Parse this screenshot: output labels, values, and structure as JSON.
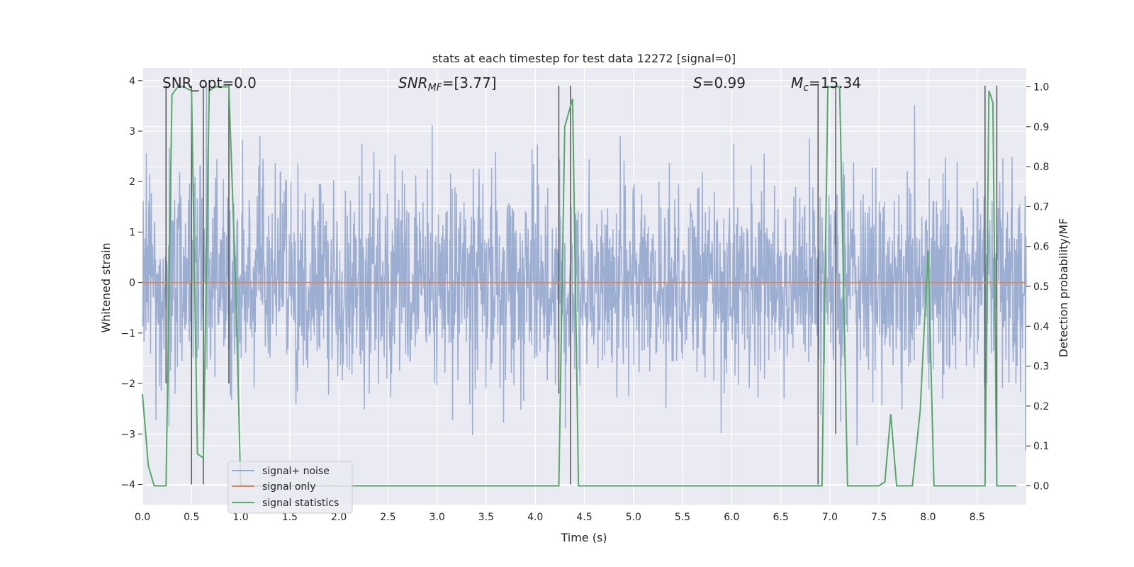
{
  "chart_data": {
    "type": "line",
    "title": "stats at each timestep for test data 12272 [signal=0]",
    "xlabel": "Time (s)",
    "ylabel": "Whitened strain",
    "y2label": "Detection probability/MF",
    "xlim": [
      0,
      9.0
    ],
    "ylim": [
      -4.4,
      4.25
    ],
    "y2lim": [
      -0.047,
      1.047
    ],
    "xticks": [
      0.0,
      0.5,
      1.0,
      1.5,
      2.0,
      2.5,
      3.0,
      3.5,
      4.0,
      4.5,
      5.0,
      5.5,
      6.0,
      6.5,
      7.0,
      7.5,
      8.0,
      8.5
    ],
    "xtick_labels": [
      "0.0",
      "0.5",
      "1.0",
      "1.5",
      "2.0",
      "2.5",
      "3.0",
      "3.5",
      "4.0",
      "4.5",
      "5.0",
      "5.5",
      "6.0",
      "6.5",
      "7.0",
      "7.5",
      "8.0",
      "8.5"
    ],
    "yticks": [
      4,
      3,
      2,
      1,
      0,
      -1,
      -2,
      -3,
      -4
    ],
    "ytick_labels": [
      "4",
      "3",
      "2",
      "1",
      "0",
      "−1",
      "−2",
      "−3",
      "−4"
    ],
    "y2ticks": [
      1.0,
      0.9,
      0.8,
      0.7,
      0.6,
      0.5,
      0.4,
      0.3,
      0.2,
      0.1,
      0.0
    ],
    "y2tick_labels": [
      "1.0",
      "0.9",
      "0.8",
      "0.7",
      "0.6",
      "0.5",
      "0.4",
      "0.3",
      "0.2",
      "0.1",
      "0.0"
    ],
    "grid": true,
    "legend_position": "lower-left",
    "annotations": {
      "snr_opt": "SNR_opt=0.0",
      "snr_mf_main": "SNR",
      "snr_mf_sub": "MF",
      "snr_mf_value": "=[3.77]",
      "s_label": "S",
      "s_value": "=0.99",
      "mc_label": "M",
      "mc_sub": "c",
      "mc_value": "=15.34"
    },
    "series": [
      {
        "name": "signal+ noise",
        "color": "#4c72b0",
        "axis": "left",
        "noise_sigma": 1.0,
        "sample_count": 2304
      },
      {
        "name": "signal only",
        "color": "#dd8452",
        "axis": "left",
        "x": [
          0.0,
          9.0
        ],
        "y": [
          0.0,
          0.0
        ]
      },
      {
        "name": "signal statistics",
        "color": "#55a868",
        "axis": "right",
        "x": [
          0.0,
          0.06,
          0.12,
          0.24,
          0.3,
          0.36,
          0.42,
          0.5,
          0.56,
          0.62,
          0.68,
          0.74,
          0.88,
          0.95,
          1.0,
          4.24,
          4.3,
          4.38,
          4.44,
          6.82,
          6.92,
          6.98,
          7.05,
          7.1,
          7.18,
          7.5,
          7.56,
          7.62,
          7.68,
          7.72,
          7.84,
          7.92,
          8.0,
          8.06,
          8.12,
          8.54,
          8.58,
          8.62,
          8.66,
          8.7,
          8.76,
          8.8,
          8.9
        ],
        "y": [
          0.23,
          0.05,
          0.0,
          0.0,
          0.98,
          1.0,
          1.0,
          0.99,
          0.08,
          0.07,
          0.99,
          1.0,
          1.0,
          0.5,
          0.0,
          0.0,
          0.9,
          0.97,
          0.0,
          0.0,
          0.0,
          1.0,
          1.0,
          1.0,
          0.0,
          0.0,
          0.01,
          0.18,
          0.0,
          0.0,
          0.0,
          0.19,
          0.59,
          0.0,
          0.0,
          0.0,
          0.0,
          0.99,
          0.96,
          0.0,
          0.0,
          0.0,
          0.0
        ]
      }
    ],
    "vlines": [
      {
        "x": 0.24,
        "y_top": 3.9,
        "y_bottom": -2.0
      },
      {
        "x": 0.5,
        "y_top": 3.9,
        "y_bottom": -4.0
      },
      {
        "x": 0.62,
        "y_top": 3.9,
        "y_bottom": -4.0
      },
      {
        "x": 0.88,
        "y_top": 3.9,
        "y_bottom": -2.0
      },
      {
        "x": 4.24,
        "y_top": 3.9,
        "y_bottom": -2.2
      },
      {
        "x": 4.36,
        "y_top": 3.9,
        "y_bottom": -4.0
      },
      {
        "x": 6.88,
        "y_top": 3.9,
        "y_bottom": -4.0
      },
      {
        "x": 7.06,
        "y_top": 3.9,
        "y_bottom": -3.0
      },
      {
        "x": 8.58,
        "y_top": 3.9,
        "y_bottom": -4.0
      },
      {
        "x": 8.7,
        "y_top": 3.9,
        "y_bottom": -4.0
      }
    ]
  }
}
